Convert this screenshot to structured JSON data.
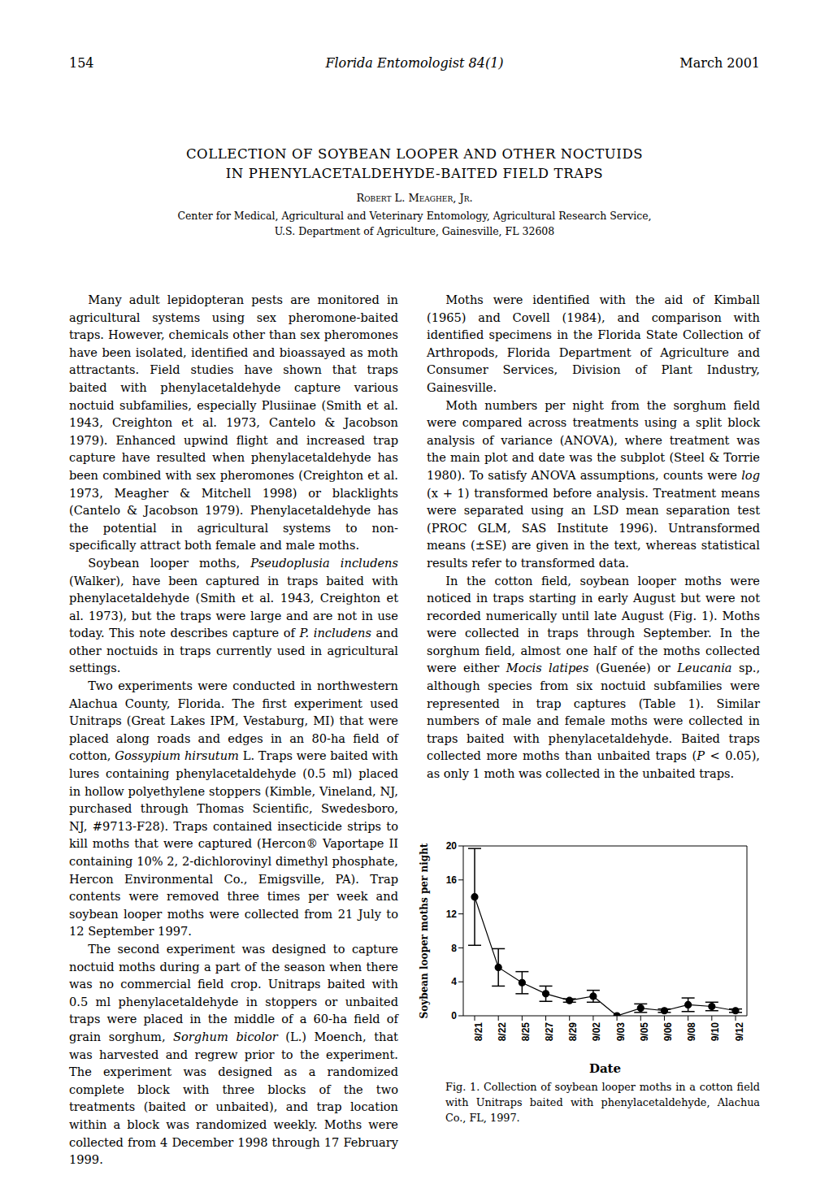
{
  "header": {
    "page": "154",
    "journal": "Florida Entomologist 84(1)",
    "date": "March 2001"
  },
  "title": [
    "COLLECTION OF SOYBEAN LOOPER AND OTHER NOCTUIDS",
    "IN PHENYLACETALDEHYDE-BAITED FIELD TRAPS"
  ],
  "author": "Robert L. Meagher, Jr.",
  "affiliation": [
    "Center for Medical, Agricultural and Veterinary Entomology, Agricultural Research Service,",
    "U.S. Department of Agriculture, Gainesville, FL 32608"
  ],
  "left_column": [
    [
      "Many adult lepidopteran pests are monitored in agricultural systems using sex pheromone-baited traps. However, chemicals other than sex pheromones have been isolated, identified and bioassayed as moth attractants. Field studies have shown that traps baited with phenylacetaldehyde capture various noctuid subfamilies, especially Plusiinae (Smith et al. 1943, Creighton et al. 1973, Cantelo & Jacobson 1979). Enhanced upwind flight and increased trap capture have resulted when phenylacetaldehyde has been combined with sex pheromones (Creighton et al. 1973, Meagher & Mitchell 1998) or blacklights (Cantelo & Jacobson 1979). Phenylacetaldehyde has the potential in agricultural systems to non-specifically attract both female and male moths."
    ],
    [
      "Soybean looper moths, ",
      {
        "italic": "Pseudoplusia includens"
      },
      " (Walker), have been captured in traps baited with phenylacetaldehyde (Smith et al. 1943, Creighton et al. 1973), but the traps were large and are not in use today. This note describes capture of ",
      {
        "italic": "P. includens"
      },
      " and other noctuids in traps currently used in agricultural settings."
    ],
    [
      "Two experiments were conducted in northwestern Alachua County, Florida. The first experiment used Unitraps (Great Lakes IPM, Vestaburg, MI) that were placed along roads and edges in an 80-ha field of cotton, ",
      {
        "italic": "Gossypium hirsutum"
      },
      " L. Traps were baited with lures containing phenylacetaldehyde (0.5 ml) placed in hollow polyethylene stoppers (Kimble, Vineland, NJ, purchased through Thomas Scientific, Swedesboro, NJ, #9713-F28). Traps contained insecticide strips to kill moths that were captured (Hercon® Vaportape II containing 10% 2, 2-dichlorovinyl dimethyl phosphate, Hercon Environmental Co., Emigsville, PA). Trap contents were removed three times per week and soybean looper moths were collected from 21 July to 12 September 1997."
    ],
    [
      "The second experiment was designed to capture noctuid moths during a part of the season when there was no commercial field crop. Unitraps baited with 0.5 ml phenylacetaldehyde in stoppers or unbaited traps were placed in the middle of a 60-ha field of grain sorghum, ",
      {
        "italic": "Sorghum bicolor"
      },
      " (L.) Moench, that was harvested and regrew prior to the experiment. The experiment was designed as a randomized complete block with three blocks of the two treatments (baited or unbaited), and trap location within a block was randomized weekly. Moths were collected from 4 December 1998 through 17 February 1999."
    ]
  ],
  "right_column": [
    [
      "Moths were identified with the aid of Kimball (1965) and Covell (1984), and comparison with identified specimens in the Florida State Collection of Arthropods, Florida Department of Agriculture and Consumer Services, Division of Plant Industry, Gainesville."
    ],
    [
      "Moth numbers per night from the sorghum field were compared across treatments using a split block analysis of variance (ANOVA), where treatment was the main plot and date was the subplot (Steel & Torrie 1980). To satisfy ANOVA assumptions, counts were ",
      {
        "italic": "log"
      },
      " (x + 1) transformed before analysis. Treatment means were separated using an LSD mean separation test (PROC GLM, SAS Institute 1996). Untransformed means (±SE) are given in the text, whereas statistical results refer to transformed data."
    ],
    [
      "In the cotton field, soybean looper moths were noticed in traps starting in early August but were not recorded numerically until late August (Fig. 1). Moths were collected in traps through September. In the sorghum field, almost one half of the moths collected were either ",
      {
        "italic": "Mocis latipes"
      },
      " (Guenée) or ",
      {
        "italic": "Leucania"
      },
      " sp., although species from six noctuid subfamilies were represented in trap captures (Table 1). Similar numbers of male and female moths were collected in traps baited with phenylacetaldehyde. Baited traps collected more moths than unbaited traps (",
      {
        "italic": "P"
      },
      " < 0.05), as only 1 moth was collected in the unbaited traps."
    ]
  ],
  "chart_data": {
    "type": "line",
    "x_label": "Date",
    "y_label": "Soybean looper moths per night",
    "categories": [
      "8/21",
      "8/22",
      "8/25",
      "8/27",
      "8/29",
      "9/02",
      "9/03",
      "9/05",
      "9/06",
      "9/08",
      "9/10",
      "9/12"
    ],
    "values": [
      14,
      5.7,
      3.9,
      2.6,
      1.8,
      2.3,
      0,
      0.9,
      0.6,
      1.3,
      1.1,
      0.6
    ],
    "errors": [
      5.7,
      2.2,
      1.3,
      0.9,
      0.2,
      0.7,
      0,
      0.5,
      0.2,
      0.8,
      0.5,
      0.2
    ],
    "color": "#000000",
    "marker": "circle",
    "grid": false,
    "ylim": [
      0,
      20
    ],
    "yticks": [
      0,
      4,
      8,
      12,
      16,
      20
    ]
  },
  "figure_caption": "Fig. 1. Collection of soybean looper moths in a cotton field with Unitraps baited with phenylacetaldehyde, Alachua Co., FL, 1997."
}
